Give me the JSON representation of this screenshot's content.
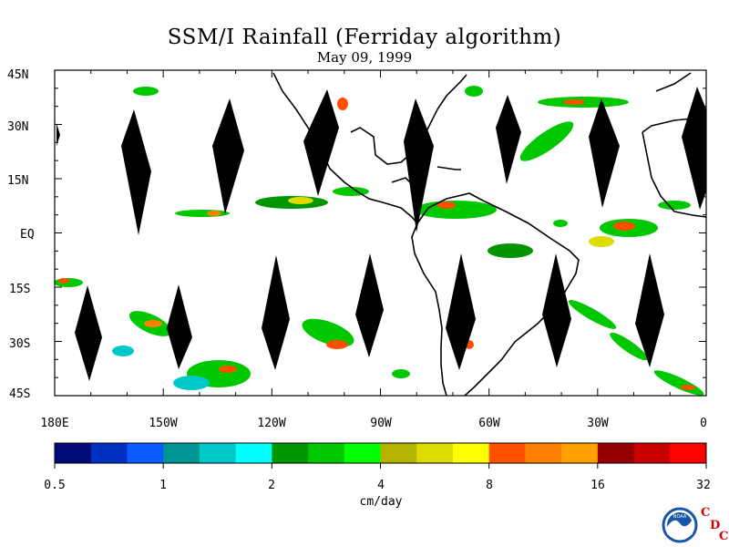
{
  "title": "SSM/I Rainfall (Ferriday algorithm)",
  "subtitle": "May 09, 1999",
  "map": {
    "lat_labels": [
      "45N",
      "30N",
      "15N",
      "EQ",
      "15S",
      "30S",
      "45S"
    ],
    "lon_labels": [
      "180E",
      "150W",
      "120W",
      "90W",
      "60W",
      "30W",
      "0"
    ],
    "missing_swath_color": "#000000"
  },
  "colorbar": {
    "colors": [
      "#000a78",
      "#0030c0",
      "#0a5aff",
      "#009696",
      "#00c8c8",
      "#00ffff",
      "#009600",
      "#00c800",
      "#00ff00",
      "#b4b400",
      "#dcdc00",
      "#ffff00",
      "#ff5000",
      "#ff8000",
      "#ffa000",
      "#960000",
      "#c80000",
      "#ff0000"
    ],
    "tick_labels": [
      "0.5",
      "1",
      "2",
      "4",
      "8",
      "16",
      "32"
    ],
    "units": "cm/day"
  },
  "logo": {
    "noaa_text": "NOAA",
    "letters": [
      "C",
      "D",
      "C"
    ],
    "accent_color": "#d10000"
  }
}
